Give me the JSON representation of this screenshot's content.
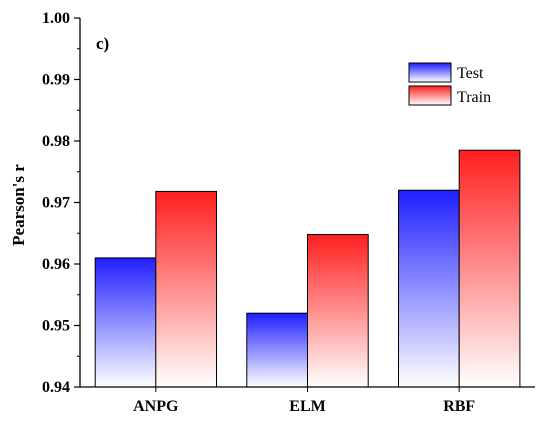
{
  "chart_data": {
    "type": "bar",
    "panel_label": "c)",
    "title": "",
    "xlabel": "",
    "ylabel": "Pearson's r",
    "categories": [
      "ANPG",
      "ELM",
      "RBF"
    ],
    "series": [
      {
        "name": "Test",
        "values": [
          0.961,
          0.952,
          0.972
        ],
        "color": "#1f1fff"
      },
      {
        "name": "Train",
        "values": [
          0.9718,
          0.9648,
          0.9785
        ],
        "color": "#ff1f1f"
      }
    ],
    "ylim": [
      0.94,
      1.0
    ],
    "yticks": [
      "0.94",
      "0.95",
      "0.96",
      "0.97",
      "0.98",
      "0.99",
      "1.00"
    ],
    "grid": false,
    "legend_position": "top-right"
  }
}
